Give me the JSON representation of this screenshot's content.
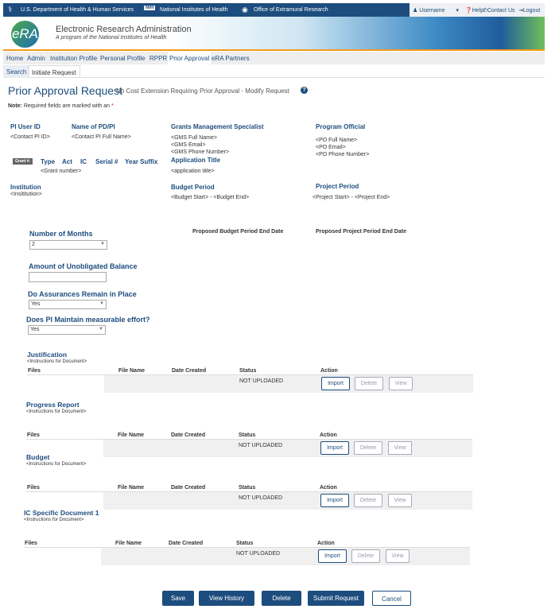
{
  "topbar": {
    "hhs": "U.S. Department of Health & Human Services",
    "nih": "National Institutes of Health",
    "oer": "Office of Extramural Research",
    "username": "Username",
    "help": "Help",
    "contact": "Contact Us",
    "logout": "Logout"
  },
  "banner": {
    "logo": "eRA",
    "title": "Electronic Research Administration",
    "subtitle": "A program of the National Institutes of Health"
  },
  "nav": [
    "Home",
    "Admin",
    "Institution Profile",
    "Personal Profile",
    "RPPR",
    "Prior Approval",
    "eRA Partners"
  ],
  "subnav": [
    "Search",
    "Initiate Request"
  ],
  "page": {
    "title": "Prior Approval Request",
    "subtitle": "No Cost Extension Requiring Prior Approval - Modify Request",
    "note_label": "Note:",
    "note_text": "Required fields are marked with an",
    "asterisk": "*"
  },
  "info": {
    "pi_user_id": {
      "label": "PI User ID",
      "value": "<Contact PI ID>"
    },
    "pd_pi": {
      "label": "Name of PD/PI",
      "value": "<Contact PI Full Name>"
    },
    "gms": {
      "label": "Grants Management Specialist",
      "lines": [
        "<GMS Full Name>",
        "<GMS Email>",
        "<GMS Phone Number>"
      ]
    },
    "po": {
      "label": "Program Official",
      "lines": [
        "<PO Full Name>",
        "<PO Email>",
        "<PO Phone Number>"
      ]
    },
    "grant": {
      "badge": "Grant #:",
      "cols": [
        "Type",
        "Act",
        "IC",
        "Serial #",
        "Year Suffix"
      ],
      "value": "<Grant number>"
    },
    "app_title": {
      "label": "Application Title",
      "value": "<application title>"
    },
    "institution": {
      "label": "Institution",
      "value": "<Insititution>"
    },
    "budget_period": {
      "label": "Budget Period",
      "value": "<Budget Start> - <Budget End>"
    },
    "project_period": {
      "label": "Project Period",
      "value": "<Project Start> - <Project End>"
    }
  },
  "form": {
    "months": {
      "label": "Number of Months",
      "value": "2"
    },
    "proposed_budget": "Proposed Budget Period End Date",
    "proposed_project": "Proposed Project Period End Date",
    "balance": {
      "label": "Amount of Unobligated Balance",
      "value": ""
    },
    "assurances": {
      "label": "Do Assurances Remain in Place",
      "value": "Yes"
    },
    "effort": {
      "label": "Does PI Maintain measurable effort?",
      "value": "Yes"
    }
  },
  "table_headers": [
    "Files",
    "File Name",
    "Date Created",
    "Status",
    "Action"
  ],
  "documents": [
    {
      "title": "Justification",
      "instructions": "<Instructions for Document>",
      "status": "NOT UPLOADED"
    },
    {
      "title": "Progress Report",
      "instructions": "<Instructions for Document>",
      "status": "NOT UPLOADED"
    },
    {
      "title": "Budget",
      "instructions": "<Instructions for Document>",
      "status": "NOT UPLOADED"
    },
    {
      "title": "IC Specific Document 1",
      "instructions": "<Instructions for Document>",
      "status": "NOT UPLOADED"
    }
  ],
  "doc_actions": {
    "import": "Import",
    "delete": "Delete",
    "view": "View"
  },
  "footer": {
    "save": "Save",
    "history": "View History",
    "delete": "Delete",
    "submit": "Submit Request",
    "cancel": "Cancel"
  }
}
